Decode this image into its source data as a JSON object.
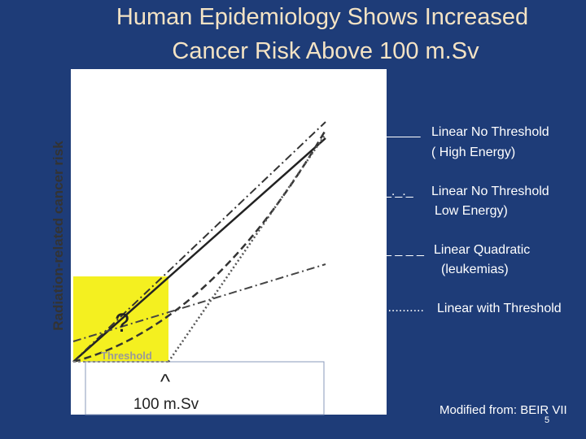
{
  "title": [
    "Human Epidemiology Shows Increased",
    "Cancer Risk Above 100 m.Sv"
  ],
  "figure": {
    "y_axis_label": "Radiation-related cancer risk",
    "threshold_label": "Threshold",
    "question_mark": "?",
    "arrow": "^",
    "dose_label": "100 m.Sv"
  },
  "legend": [
    {
      "symbol": "_____",
      "label": "Linear No Threshold",
      "sublabel": "( High Energy)"
    },
    {
      "symbol": "_._._",
      "label": "Linear No Threshold",
      "sublabel": "Low Energy)"
    },
    {
      "symbol": "_ _ _ _",
      "label": "Linear Quadratic",
      "sublabel": "(leukemias)"
    },
    {
      "symbol": "...........",
      "label": "Linear with Threshold"
    }
  ],
  "credit": "Modified from: BEIR VII",
  "page_number": "5"
}
